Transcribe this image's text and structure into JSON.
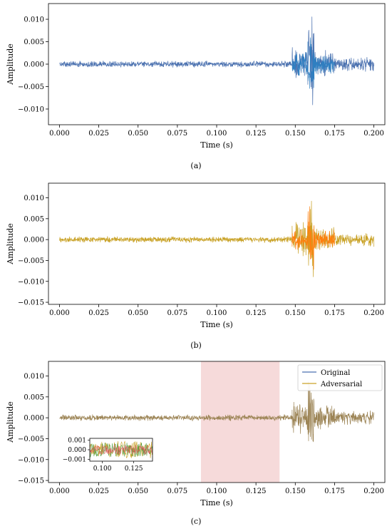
{
  "chart_data": [
    {
      "id": "a",
      "type": "line",
      "caption": "(a)",
      "xlabel": "Time (s)",
      "ylabel": "Amplitude",
      "xlim": [
        -0.007,
        0.207
      ],
      "ylim": [
        -0.0135,
        0.0135
      ],
      "xticks": [
        "0.000",
        "0.025",
        "0.050",
        "0.075",
        "0.100",
        "0.125",
        "0.150",
        "0.175",
        "0.200"
      ],
      "yticks": [
        "-0.010",
        "-0.005",
        "0.000",
        "0.005",
        "0.010"
      ],
      "series": [
        {
          "color": "#4c72b0",
          "segments": [
            {
              "x0": 0.0,
              "x1": 0.148,
              "peak": 0.0008
            },
            {
              "x0": 0.148,
              "x1": 0.158,
              "peak": 0.0045
            },
            {
              "x0": 0.158,
              "x1": 0.162,
              "peak": 0.012
            },
            {
              "x0": 0.162,
              "x1": 0.175,
              "peak": 0.0035
            },
            {
              "x0": 0.175,
              "x1": 0.2,
              "peak": 0.0018
            }
          ]
        },
        {
          "color": "#2f7fc1",
          "segments": [
            {
              "x0": 0.148,
              "x1": 0.158,
              "peak": 0.003
            },
            {
              "x0": 0.158,
              "x1": 0.162,
              "peak": 0.0085
            },
            {
              "x0": 0.162,
              "x1": 0.175,
              "peak": 0.0025
            }
          ]
        }
      ]
    },
    {
      "id": "b",
      "type": "line",
      "caption": "(b)",
      "xlabel": "Time (s)",
      "ylabel": "Amplitude",
      "xlim": [
        -0.007,
        0.207
      ],
      "ylim": [
        -0.0155,
        0.0135
      ],
      "xticks": [
        "0.000",
        "0.025",
        "0.050",
        "0.075",
        "0.100",
        "0.125",
        "0.150",
        "0.175",
        "0.200"
      ],
      "yticks": [
        "-0.015",
        "-0.010",
        "-0.005",
        "0.000",
        "0.005",
        "0.010"
      ],
      "series": [
        {
          "color": "#c9a227",
          "segments": [
            {
              "x0": 0.0,
              "x1": 0.148,
              "peak": 0.0008
            },
            {
              "x0": 0.148,
              "x1": 0.158,
              "peak": 0.0045
            },
            {
              "x0": 0.158,
              "x1": 0.162,
              "peak": 0.0125
            },
            {
              "x0": 0.162,
              "x1": 0.175,
              "peak": 0.0035
            },
            {
              "x0": 0.175,
              "x1": 0.2,
              "peak": 0.0018
            }
          ]
        },
        {
          "color": "#ff7f0e",
          "segments": [
            {
              "x0": 0.148,
              "x1": 0.158,
              "peak": 0.003
            },
            {
              "x0": 0.158,
              "x1": 0.162,
              "peak": 0.009
            },
            {
              "x0": 0.162,
              "x1": 0.175,
              "peak": 0.0025
            }
          ]
        }
      ]
    },
    {
      "id": "c",
      "type": "line",
      "caption": "(c)",
      "xlabel": "Time (s)",
      "ylabel": "Amplitude",
      "xlim": [
        -0.007,
        0.207
      ],
      "ylim": [
        -0.0155,
        0.0135
      ],
      "xticks": [
        "0.000",
        "0.025",
        "0.050",
        "0.075",
        "0.100",
        "0.125",
        "0.150",
        "0.175",
        "0.200"
      ],
      "yticks": [
        "-0.015",
        "-0.010",
        "-0.005",
        "0.000",
        "0.005",
        "0.010"
      ],
      "shaded_region": {
        "x0": 0.09,
        "x1": 0.14,
        "color": "#f6dada"
      },
      "legend": {
        "position": "top-right",
        "entries": [
          {
            "label": "Original",
            "color": "#4c72b0"
          },
          {
            "label": "Adversarial",
            "color": "#c9a227"
          }
        ]
      },
      "series": [
        {
          "name": "Original",
          "color": "#9c8455",
          "segments": [
            {
              "x0": 0.0,
              "x1": 0.148,
              "peak": 0.0008
            },
            {
              "x0": 0.148,
              "x1": 0.158,
              "peak": 0.0045
            },
            {
              "x0": 0.158,
              "x1": 0.162,
              "peak": 0.0125
            },
            {
              "x0": 0.162,
              "x1": 0.175,
              "peak": 0.0035
            },
            {
              "x0": 0.175,
              "x1": 0.2,
              "peak": 0.0018
            }
          ]
        }
      ],
      "inset": {
        "xlim": [
          0.09,
          0.14
        ],
        "ylim": [
          -0.0012,
          0.0012
        ],
        "xticks": [
          "0.100",
          "0.125"
        ],
        "yticks": [
          "0.001",
          "0.000",
          "-0.001"
        ],
        "series": [
          {
            "color": "#c9a227",
            "peak": 0.0009
          },
          {
            "color": "#4c9a3a",
            "peak": 0.0008
          },
          {
            "color": "#e15759",
            "peak": 0.0005
          }
        ]
      }
    }
  ]
}
